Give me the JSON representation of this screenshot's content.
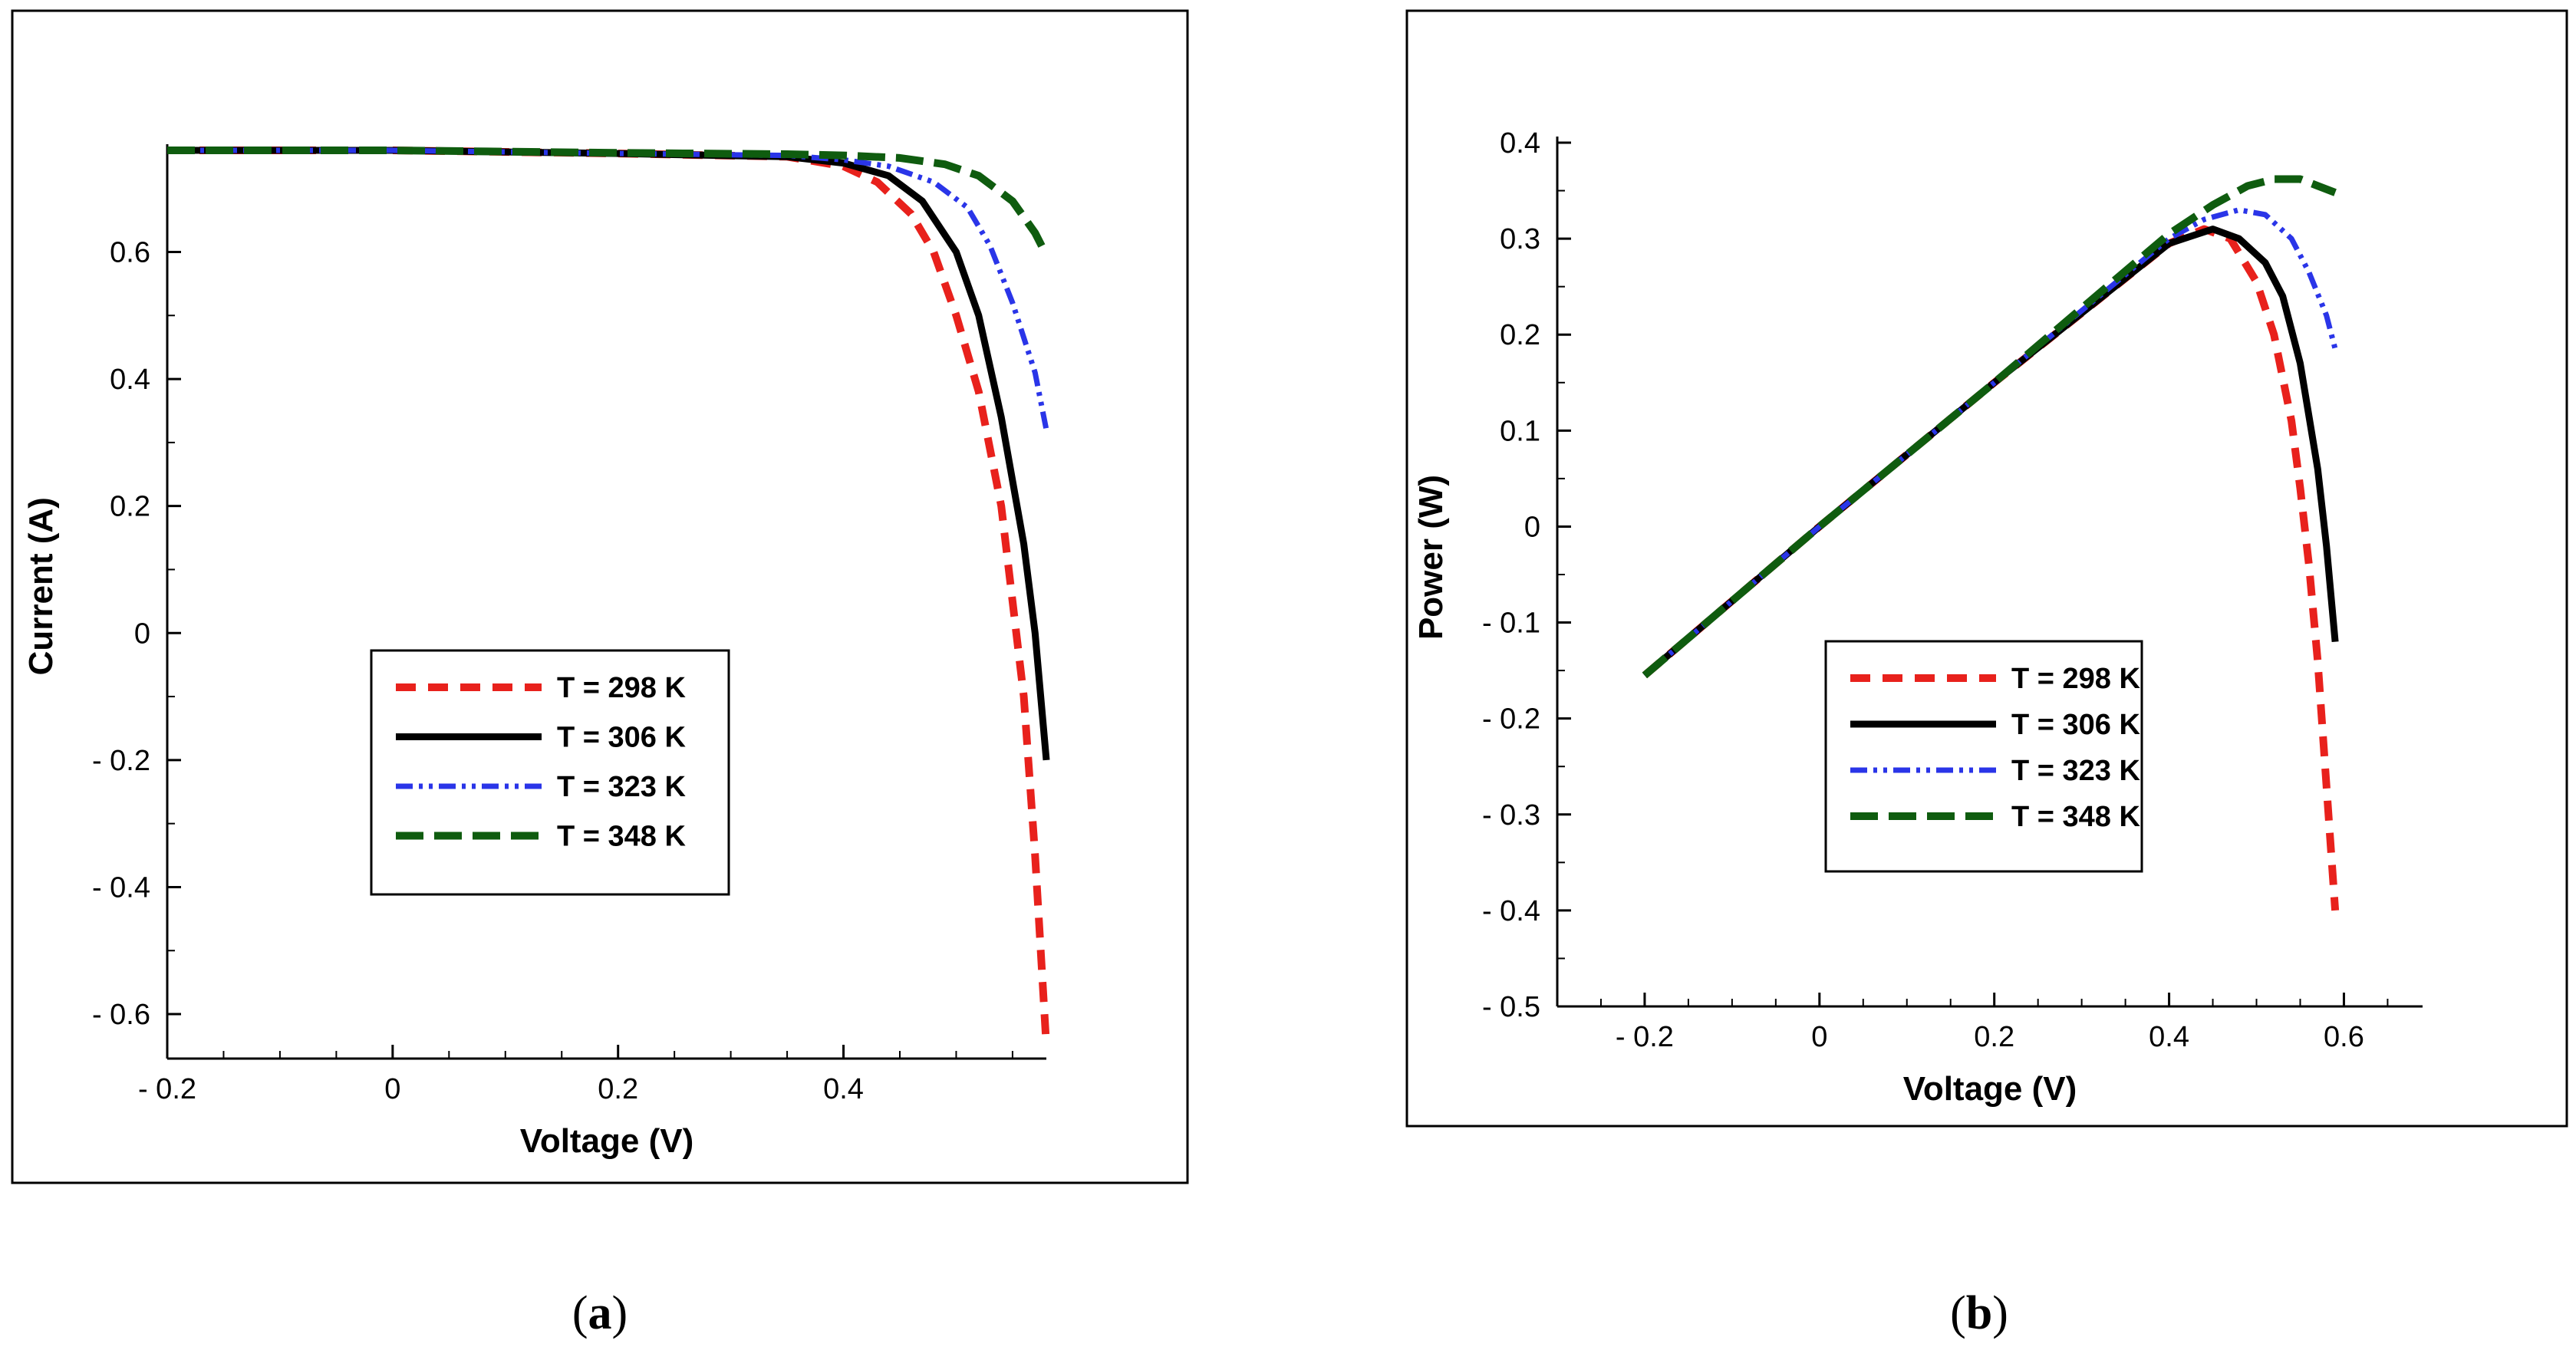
{
  "colors": {
    "t298": "#e8211c",
    "t306": "#000000",
    "t323": "#2a35e8",
    "t348": "#0f5c0f"
  },
  "chart_data": [
    {
      "id": "a",
      "type": "line",
      "caption": {
        "open": "(",
        "letter": "a",
        "close": ")"
      },
      "xlabel": "Voltage (V)",
      "ylabel": "Current (A)",
      "xlim": [
        -0.2,
        0.58
      ],
      "ylim": [
        -0.67,
        0.76
      ],
      "xticks": [
        {
          "value": -0.2,
          "label": "- 0.2"
        },
        {
          "value": 0,
          "label": "0"
        },
        {
          "value": 0.2,
          "label": "0.2"
        },
        {
          "value": 0.4,
          "label": "0.4"
        }
      ],
      "yticks": [
        {
          "value": -0.6,
          "label": "- 0.6"
        },
        {
          "value": -0.4,
          "label": "- 0.4"
        },
        {
          "value": -0.2,
          "label": "- 0.2"
        },
        {
          "value": 0,
          "label": "0"
        },
        {
          "value": 0.2,
          "label": "0.2"
        },
        {
          "value": 0.4,
          "label": "0.4"
        },
        {
          "value": 0.6,
          "label": "0.6"
        }
      ],
      "legend_position": "center-left",
      "series": [
        {
          "name": "T = 298 K",
          "color_key": "t298",
          "style": "dashed",
          "x": [
            -0.2,
            0.0,
            0.2,
            0.35,
            0.4,
            0.43,
            0.46,
            0.48,
            0.5,
            0.52,
            0.54,
            0.55,
            0.56,
            0.57,
            0.58
          ],
          "y": [
            0.76,
            0.76,
            0.755,
            0.75,
            0.735,
            0.71,
            0.66,
            0.6,
            0.5,
            0.38,
            0.2,
            0.05,
            -0.1,
            -0.35,
            -0.65
          ]
        },
        {
          "name": "T = 306 K",
          "color_key": "t306",
          "style": "solid",
          "x": [
            -0.2,
            0.0,
            0.2,
            0.35,
            0.4,
            0.44,
            0.47,
            0.5,
            0.52,
            0.54,
            0.56,
            0.57,
            0.58
          ],
          "y": [
            0.76,
            0.76,
            0.755,
            0.75,
            0.74,
            0.72,
            0.68,
            0.6,
            0.5,
            0.34,
            0.14,
            0.0,
            -0.2
          ]
        },
        {
          "name": "T = 323 K",
          "color_key": "t323",
          "style": "dashdot",
          "x": [
            -0.2,
            0.0,
            0.2,
            0.35,
            0.4,
            0.44,
            0.48,
            0.51,
            0.53,
            0.55,
            0.57,
            0.58
          ],
          "y": [
            0.76,
            0.76,
            0.755,
            0.752,
            0.745,
            0.735,
            0.71,
            0.67,
            0.61,
            0.52,
            0.41,
            0.32
          ]
        },
        {
          "name": "T = 348 K",
          "color_key": "t348",
          "style": "longdash",
          "x": [
            -0.2,
            0.0,
            0.2,
            0.35,
            0.4,
            0.45,
            0.49,
            0.52,
            0.55,
            0.57,
            0.58
          ],
          "y": [
            0.76,
            0.76,
            0.756,
            0.754,
            0.752,
            0.748,
            0.738,
            0.72,
            0.68,
            0.63,
            0.595
          ]
        }
      ]
    },
    {
      "id": "b",
      "type": "line",
      "caption": {
        "open": "(",
        "letter": "b",
        "close": ")"
      },
      "xlabel": "Voltage (V)",
      "ylabel": "Power (W)",
      "xlim": [
        -0.3,
        0.69
      ],
      "ylim": [
        -0.5,
        0.4
      ],
      "xticks": [
        {
          "value": -0.2,
          "label": "- 0.2"
        },
        {
          "value": 0,
          "label": "0"
        },
        {
          "value": 0.2,
          "label": "0.2"
        },
        {
          "value": 0.4,
          "label": "0.4"
        },
        {
          "value": 0.6,
          "label": "0.6"
        }
      ],
      "yticks": [
        {
          "value": -0.5,
          "label": "- 0.5"
        },
        {
          "value": -0.4,
          "label": "- 0.4"
        },
        {
          "value": -0.3,
          "label": "- 0.3"
        },
        {
          "value": -0.2,
          "label": "- 0.2"
        },
        {
          "value": -0.1,
          "label": "- 0.1"
        },
        {
          "value": 0,
          "label": "0"
        },
        {
          "value": 0.1,
          "label": "0.1"
        },
        {
          "value": 0.2,
          "label": "0.2"
        },
        {
          "value": 0.3,
          "label": "0.3"
        },
        {
          "value": 0.4,
          "label": "0.4"
        }
      ],
      "legend_position": "center",
      "series": [
        {
          "name": "T = 298 K",
          "color_key": "t298",
          "style": "dashed",
          "x": [
            -0.2,
            0.0,
            0.2,
            0.4,
            0.44,
            0.47,
            0.5,
            0.52,
            0.54,
            0.55,
            0.56,
            0.57,
            0.58,
            0.59
          ],
          "y": [
            -0.155,
            0.0,
            0.15,
            0.295,
            0.31,
            0.3,
            0.255,
            0.2,
            0.11,
            0.04,
            -0.04,
            -0.14,
            -0.27,
            -0.4
          ]
        },
        {
          "name": "T = 306 K",
          "color_key": "t306",
          "style": "solid",
          "x": [
            -0.2,
            0.0,
            0.2,
            0.4,
            0.45,
            0.48,
            0.51,
            0.53,
            0.55,
            0.57,
            0.58,
            0.59
          ],
          "y": [
            -0.155,
            0.0,
            0.15,
            0.295,
            0.31,
            0.3,
            0.275,
            0.24,
            0.17,
            0.06,
            -0.02,
            -0.12
          ]
        },
        {
          "name": "T = 323 K",
          "color_key": "t323",
          "style": "dashdot",
          "x": [
            -0.2,
            0.0,
            0.2,
            0.4,
            0.44,
            0.48,
            0.51,
            0.54,
            0.56,
            0.58,
            0.59
          ],
          "y": [
            -0.155,
            0.0,
            0.15,
            0.3,
            0.32,
            0.33,
            0.325,
            0.3,
            0.265,
            0.22,
            0.185
          ]
        },
        {
          "name": "T = 348 K",
          "color_key": "t348",
          "style": "longdash",
          "x": [
            -0.2,
            0.0,
            0.2,
            0.4,
            0.45,
            0.49,
            0.52,
            0.55,
            0.57,
            0.59
          ],
          "y": [
            -0.155,
            0.0,
            0.15,
            0.305,
            0.335,
            0.355,
            0.362,
            0.362,
            0.355,
            0.348
          ]
        }
      ]
    }
  ]
}
